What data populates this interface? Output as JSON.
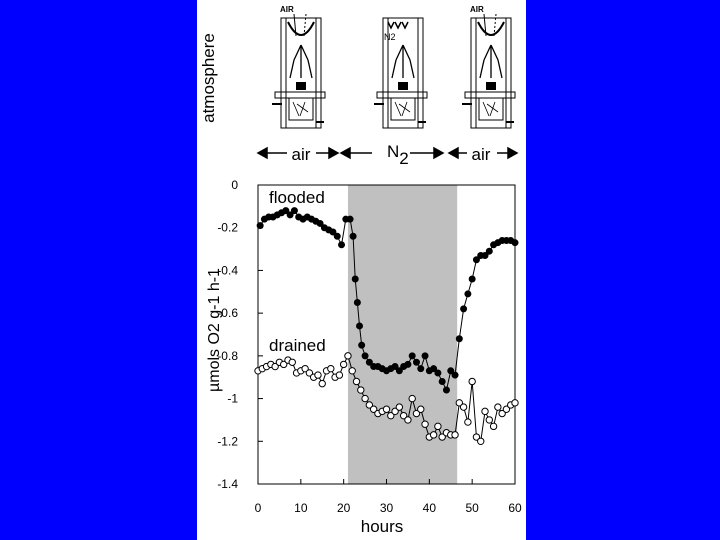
{
  "header": {
    "side_label": "atmosphere",
    "apparatus_labels": [
      "AIR",
      "N2",
      "AIR"
    ],
    "segments": [
      {
        "label": "air"
      },
      {
        "label": "N",
        "subscript": "2"
      },
      {
        "label": "air"
      }
    ]
  },
  "colors": {
    "background": "#0000ff",
    "panel": "#ffffff",
    "shade": "#c0c0c0",
    "flooded": "#000000",
    "drained": "#ffffff"
  },
  "chart_data": {
    "type": "line",
    "xlabel": "hours",
    "ylabel": "µmols O2 g-1 h-1",
    "xlim": [
      0,
      60
    ],
    "ylim": [
      -1.4,
      0
    ],
    "xticks": [
      0,
      10,
      20,
      30,
      40,
      50,
      60
    ],
    "yticks": [
      0,
      -0.2,
      -0.4,
      -0.6,
      -0.8,
      -1,
      -1.2,
      -1.4
    ],
    "ytick_labels": [
      "0",
      "-0.2",
      "-0.4",
      "-0.6",
      "-0.8",
      "-1",
      "-1.2",
      "-1.4"
    ],
    "shaded_region": {
      "x": [
        21,
        46.5
      ],
      "label": "N2"
    },
    "series": [
      {
        "name": "flooded",
        "marker": "filled-circle",
        "x": [
          0.5,
          1.5,
          2.5,
          3.5,
          4.5,
          5.5,
          6.5,
          7.5,
          8.5,
          9.5,
          10.5,
          11.5,
          12.5,
          13.5,
          14.5,
          15.5,
          16.5,
          17.5,
          18.5,
          19.5,
          20.5,
          21.5,
          22.2,
          22.7,
          23.2,
          23.7,
          24.2,
          25,
          26,
          27,
          28,
          29,
          30,
          31,
          32,
          33,
          34,
          35,
          36,
          37,
          38,
          39,
          40,
          41,
          42,
          43,
          44,
          45,
          46,
          47,
          48,
          49,
          50,
          51,
          52,
          53,
          54,
          55,
          56,
          57,
          58,
          59,
          60
        ],
        "y": [
          -0.19,
          -0.16,
          -0.15,
          -0.15,
          -0.14,
          -0.13,
          -0.12,
          -0.14,
          -0.12,
          -0.15,
          -0.16,
          -0.15,
          -0.16,
          -0.17,
          -0.18,
          -0.2,
          -0.21,
          -0.22,
          -0.24,
          -0.28,
          -0.16,
          -0.16,
          -0.24,
          -0.44,
          -0.55,
          -0.66,
          -0.75,
          -0.8,
          -0.83,
          -0.85,
          -0.85,
          -0.86,
          -0.87,
          -0.86,
          -0.85,
          -0.87,
          -0.85,
          -0.84,
          -0.8,
          -0.83,
          -0.86,
          -0.8,
          -0.87,
          -0.86,
          -0.88,
          -0.92,
          -0.96,
          -0.87,
          -0.89,
          -0.72,
          -0.58,
          -0.51,
          -0.44,
          -0.35,
          -0.33,
          -0.33,
          -0.31,
          -0.28,
          -0.27,
          -0.26,
          -0.26,
          -0.26,
          -0.27
        ]
      },
      {
        "name": "drained",
        "marker": "open-circle",
        "x": [
          0,
          1,
          2,
          3,
          4,
          5,
          6,
          7,
          8,
          9,
          10,
          11,
          12,
          13,
          14,
          15,
          16,
          17,
          18,
          19,
          20,
          21,
          22,
          23,
          24,
          25,
          26,
          27,
          28,
          29,
          30,
          31,
          32,
          33,
          34,
          35,
          36,
          37,
          38,
          39,
          40,
          41,
          42,
          43,
          44,
          45,
          46,
          47,
          48,
          49,
          50,
          51,
          52,
          53,
          54,
          55,
          56,
          57,
          58,
          59,
          60
        ],
        "y": [
          -0.87,
          -0.86,
          -0.85,
          -0.84,
          -0.85,
          -0.83,
          -0.84,
          -0.82,
          -0.83,
          -0.88,
          -0.87,
          -0.86,
          -0.88,
          -0.9,
          -0.89,
          -0.93,
          -0.87,
          -0.86,
          -0.9,
          -0.89,
          -0.84,
          -0.8,
          -0.87,
          -0.92,
          -0.96,
          -1,
          -1.03,
          -1.05,
          -1.07,
          -1.06,
          -1.05,
          -1.08,
          -1.06,
          -1.04,
          -1.08,
          -1.1,
          -1,
          -1.07,
          -1.05,
          -1.12,
          -1.18,
          -1.17,
          -1.13,
          -1.18,
          -1.16,
          -1.17,
          -1.17,
          -1.02,
          -1.04,
          -1.11,
          -0.92,
          -1.18,
          -1.2,
          -1.06,
          -1.1,
          -1.13,
          -1.04,
          -1.07,
          -1.05,
          -1.03,
          -1.02
        ]
      }
    ]
  }
}
